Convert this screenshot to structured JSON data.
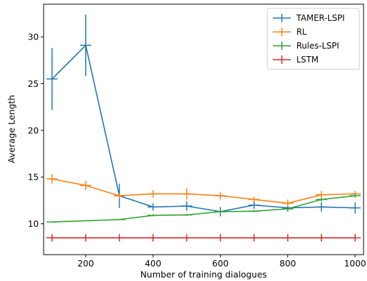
{
  "chart_data": {
    "type": "line",
    "title": "",
    "xlabel": "Number of training dialogues",
    "ylabel": "Average Length",
    "xlim": [
      75,
      1025
    ],
    "ylim": [
      6.7,
      33.5
    ],
    "xticks": [
      200,
      400,
      600,
      800,
      1000
    ],
    "yticks": [
      10,
      15,
      20,
      25,
      30
    ],
    "grid": false,
    "legend_position": "top-right",
    "x": [
      100,
      200,
      300,
      400,
      500,
      600,
      700,
      800,
      900,
      1000
    ],
    "series": [
      {
        "name": "TAMER-LSPI",
        "color": "#1f77b4",
        "values": [
          25.5,
          29.1,
          13.0,
          11.8,
          11.9,
          11.3,
          12.0,
          11.7,
          11.8,
          11.7
        ],
        "errors": [
          3.3,
          3.3,
          1.3,
          0.4,
          0.5,
          0.5,
          0.4,
          0.4,
          0.5,
          0.6
        ]
      },
      {
        "name": "RL",
        "color": "#ff7f0e",
        "values": [
          14.8,
          14.1,
          13.0,
          13.2,
          13.2,
          13.0,
          12.6,
          12.2,
          13.1,
          13.2
        ],
        "errors": [
          0.5,
          0.5,
          0.3,
          0.4,
          0.6,
          0.4,
          0.3,
          0.4,
          0.4,
          0.3
        ]
      },
      {
        "name": "Rules-LSPI",
        "color": "#2ca02c",
        "values": [
          10.2,
          null,
          10.45,
          10.9,
          10.95,
          11.3,
          11.35,
          11.6,
          12.6,
          13.0
        ],
        "errors": [
          0,
          0,
          0,
          0.1,
          0.1,
          0.1,
          0.1,
          0.1,
          0.2,
          0.2
        ]
      },
      {
        "name": "LSTM",
        "color": "#d62728",
        "values": [
          8.5,
          8.5,
          8.5,
          8.5,
          8.5,
          8.5,
          8.5,
          8.5,
          8.5,
          8.5
        ],
        "errors": [
          0.4,
          0.4,
          0.4,
          0.4,
          0.4,
          0.4,
          0.4,
          0.4,
          0.4,
          0.4
        ]
      }
    ]
  }
}
